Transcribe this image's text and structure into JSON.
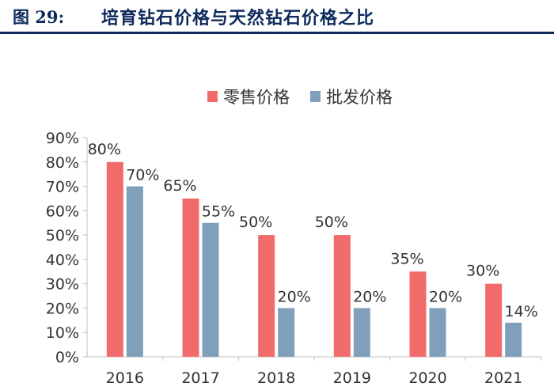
{
  "header": {
    "figure_label": "图 29:",
    "title": "培育钻石价格与天然钻石价格之比"
  },
  "colors": {
    "series_retail": "#f26b6b",
    "series_wholesale": "#7f9fbb",
    "header_text": "#0d2a5c"
  },
  "chart_data": {
    "type": "bar",
    "categories": [
      "2016",
      "2017",
      "2018",
      "2019",
      "2020",
      "2021"
    ],
    "series": [
      {
        "name": "零售价格",
        "values": [
          80,
          65,
          50,
          50,
          35,
          30
        ],
        "labels": [
          "80%",
          "65%",
          "50%",
          "50%",
          "35%",
          "30%"
        ]
      },
      {
        "name": "批发价格",
        "values": [
          70,
          55,
          20,
          20,
          20,
          14
        ],
        "labels": [
          "70%",
          "55%",
          "20%",
          "20%",
          "20%",
          "14%"
        ]
      }
    ],
    "ylim": [
      0,
      90
    ],
    "yticks": [
      "0%",
      "10%",
      "20%",
      "30%",
      "40%",
      "50%",
      "60%",
      "70%",
      "80%",
      "90%"
    ],
    "legend_position": "top",
    "grid": false
  }
}
